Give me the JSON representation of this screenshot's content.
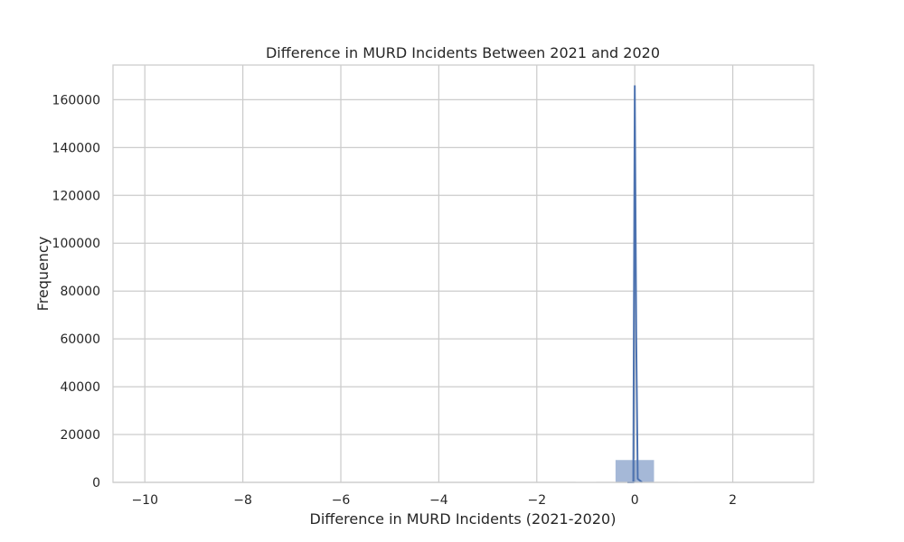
{
  "chart_data": {
    "type": "bar",
    "title": "Difference in MURD Incidents Between 2021 and 2020",
    "xlabel": "Difference in MURD Incidents (2021-2020)",
    "ylabel": "Frequency",
    "xlim": [
      -10.65,
      3.65
    ],
    "ylim": [
      0,
      174500
    ],
    "xticks": [
      -10,
      -8,
      -6,
      -4,
      -2,
      0,
      2
    ],
    "xtick_labels": [
      "−10",
      "−8",
      "−6",
      "−4",
      "−2",
      "0",
      "2"
    ],
    "yticks": [
      0,
      20000,
      40000,
      60000,
      80000,
      100000,
      120000,
      140000,
      160000
    ],
    "ytick_labels": [
      "0",
      "20000",
      "40000",
      "60000",
      "80000",
      "100000",
      "120000",
      "140000",
      "160000"
    ],
    "grid": true,
    "legend": false,
    "bar_color": "#4c72b0",
    "bar_opacity": 0.5,
    "line_color": "#4c72b0",
    "bins": [
      {
        "x0": -10.0,
        "x1": -9.0,
        "count": 0
      },
      {
        "x0": -9.0,
        "x1": -8.0,
        "count": 0
      },
      {
        "x0": -8.0,
        "x1": -7.0,
        "count": 0
      },
      {
        "x0": -7.0,
        "x1": -6.0,
        "count": 0
      },
      {
        "x0": -6.0,
        "x1": -5.0,
        "count": 0
      },
      {
        "x0": -5.0,
        "x1": -4.0,
        "count": 0
      },
      {
        "x0": -4.0,
        "x1": -3.0,
        "count": 0
      },
      {
        "x0": -3.0,
        "x1": -2.0,
        "count": 0
      },
      {
        "x0": -1.2,
        "x1": -0.8,
        "count": 150
      },
      {
        "x0": -0.4,
        "x1": 0.4,
        "count": 9500
      },
      {
        "x0": 0.9,
        "x1": 1.2,
        "count": 120
      },
      {
        "x0": 2.5,
        "x1": 3.0,
        "count": 20
      }
    ],
    "kde": {
      "x": [
        -0.15,
        -0.03,
        0.0,
        0.03,
        0.06,
        0.15
      ],
      "y": [
        0,
        0,
        166000,
        60000,
        1500,
        0
      ]
    }
  }
}
